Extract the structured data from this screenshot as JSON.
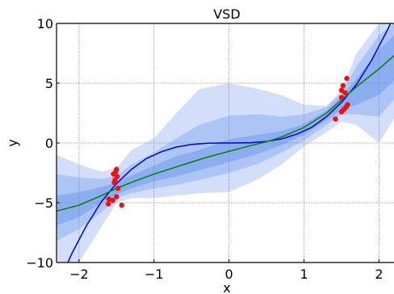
{
  "chart_data": {
    "type": "line",
    "title": "VSD",
    "xlabel": "x",
    "ylabel": "y",
    "xlim": [
      -2.3,
      2.2
    ],
    "ylim": [
      -10,
      10
    ],
    "xticks": [
      -2,
      -1,
      0,
      1,
      2
    ],
    "yticks": [
      -10,
      -5,
      0,
      5,
      10
    ],
    "xtick_labels": [
      "−2",
      "−1",
      "0",
      "1",
      "2"
    ],
    "ytick_labels": [
      "−10",
      "−5",
      "0",
      "5",
      "10"
    ],
    "grid": true,
    "colors": {
      "truth": "#0000dd",
      "mean": "#108010",
      "band_outer": "#d2defa",
      "band_mid": "#adc5f5",
      "band_inner": "#8aaeef",
      "points": "#ee1111",
      "grid": "#888888"
    },
    "series": [
      {
        "x": [
          -2.3,
          -2.1,
          -1.9,
          -1.7,
          -1.5,
          -1.3,
          -1.1,
          -0.9,
          -0.7,
          -0.5,
          -0.3,
          -0.1,
          0.1,
          0.3,
          0.5,
          0.7,
          0.9,
          1.1,
          1.3,
          1.5,
          1.7,
          1.9,
          2.1,
          2.2
        ],
        "y": [
          -12.2,
          -9.3,
          -6.9,
          -4.9,
          -3.4,
          -2.2,
          -1.3,
          -0.73,
          -0.34,
          -0.13,
          -0.03,
          0.0,
          0.0,
          0.03,
          0.13,
          0.34,
          0.73,
          1.3,
          2.2,
          3.4,
          4.9,
          6.9,
          9.3,
          10.6
        ]
      },
      {
        "x": [
          -2.3,
          -2.0,
          -1.7,
          -1.5,
          -1.3,
          -1.0,
          -0.7,
          -0.5,
          -0.3,
          0.0,
          0.3,
          0.5,
          0.7,
          1.0,
          1.3,
          1.5,
          1.7,
          2.0,
          2.2
        ],
        "y": [
          -5.7,
          -5.2,
          -4.4,
          -3.8,
          -3.3,
          -2.6,
          -2.0,
          -1.6,
          -1.2,
          -0.7,
          -0.2,
          0.1,
          0.5,
          1.3,
          2.5,
          3.6,
          4.7,
          6.2,
          7.3
        ]
      }
    ],
    "bands": [
      {
        "x": [
          -2.3,
          -2.0,
          -1.7,
          -1.5,
          -1.3,
          -1.0,
          -0.7,
          -0.4,
          0.0,
          0.4,
          0.7,
          1.0,
          1.3,
          1.5,
          1.7,
          2.0,
          2.2
        ],
        "lower": [
          -10.0,
          -10.0,
          -7.0,
          -5.0,
          -4.6,
          -4.6,
          -4.4,
          -4.2,
          -4.1,
          -3.0,
          -1.8,
          -0.3,
          0.9,
          1.8,
          1.5,
          0.0,
          2.0
        ],
        "upper": [
          -1.0,
          -1.8,
          -2.4,
          -2.1,
          -0.6,
          0.4,
          2.5,
          4.5,
          5.0,
          4.5,
          4.0,
          3.2,
          3.1,
          4.4,
          7.5,
          10.0,
          10.0
        ]
      },
      {
        "x": [
          -2.3,
          -2.0,
          -1.7,
          -1.5,
          -1.3,
          -1.0,
          -0.7,
          -0.4,
          0.0,
          0.4,
          0.7,
          1.0,
          1.3,
          1.5,
          1.7,
          2.0,
          2.2
        ],
        "lower": [
          -8.2,
          -7.2,
          -5.8,
          -4.6,
          -4.2,
          -3.8,
          -3.5,
          -3.1,
          -2.5,
          -1.7,
          -0.8,
          0.2,
          1.5,
          2.4,
          2.4,
          2.2,
          3.6
        ],
        "upper": [
          -2.6,
          -2.9,
          -3.0,
          -2.8,
          -1.8,
          -0.8,
          0.4,
          1.5,
          2.3,
          2.4,
          2.2,
          2.4,
          3.0,
          4.2,
          6.4,
          9.0,
          10.0
        ]
      },
      {
        "x": [
          -2.3,
          -2.0,
          -1.7,
          -1.5,
          -1.3,
          -1.0,
          -0.7,
          -0.4,
          0.0,
          0.4,
          0.7,
          1.0,
          1.3,
          1.5,
          1.7,
          2.0,
          2.2
        ],
        "lower": [
          -6.9,
          -6.2,
          -5.0,
          -4.3,
          -3.8,
          -3.2,
          -2.8,
          -2.3,
          -1.6,
          -0.9,
          -0.2,
          0.7,
          1.9,
          2.8,
          3.2,
          4.0,
          5.2
        ],
        "upper": [
          -4.4,
          -4.1,
          -3.7,
          -3.3,
          -2.7,
          -1.9,
          -1.1,
          -0.6,
          0.3,
          0.7,
          1.0,
          1.6,
          2.7,
          3.9,
          5.4,
          7.8,
          9.0
        ]
      }
    ],
    "points": [
      {
        "x": -1.5,
        "y": -2.2
      },
      {
        "x": -1.51,
        "y": -2.4
      },
      {
        "x": -1.54,
        "y": -2.6
      },
      {
        "x": -1.49,
        "y": -2.8
      },
      {
        "x": -1.52,
        "y": -3.1
      },
      {
        "x": -1.53,
        "y": -3.3
      },
      {
        "x": -1.48,
        "y": -3.8
      },
      {
        "x": -1.5,
        "y": -4.5
      },
      {
        "x": -1.55,
        "y": -4.8
      },
      {
        "x": -1.6,
        "y": -4.7
      },
      {
        "x": -1.61,
        "y": -5.1
      },
      {
        "x": -1.43,
        "y": -5.2
      },
      {
        "x": 1.57,
        "y": 5.4
      },
      {
        "x": 1.52,
        "y": 4.8
      },
      {
        "x": 1.5,
        "y": 4.4
      },
      {
        "x": 1.55,
        "y": 4.2
      },
      {
        "x": 1.5,
        "y": 3.8
      },
      {
        "x": 1.58,
        "y": 3.2
      },
      {
        "x": 1.56,
        "y": 3.0
      },
      {
        "x": 1.53,
        "y": 2.8
      },
      {
        "x": 1.5,
        "y": 2.6
      },
      {
        "x": 1.42,
        "y": 2.0
      }
    ]
  }
}
